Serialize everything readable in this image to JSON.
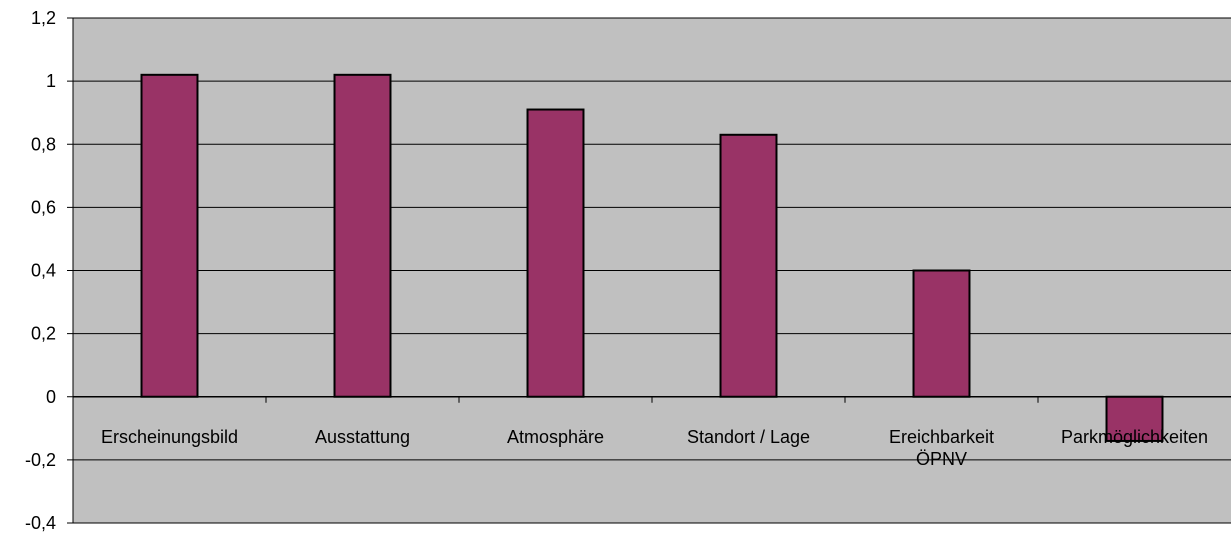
{
  "chart_data": {
    "type": "bar",
    "title": "",
    "xlabel": "",
    "ylabel": "",
    "categories": [
      [
        "Erscheinungsbild"
      ],
      [
        "Ausstattung"
      ],
      [
        "Atmosphäre"
      ],
      [
        "Standort / Lage"
      ],
      [
        "Ereichbarkeit",
        "ÖPNV"
      ],
      [
        "Parkmöglichkeiten"
      ]
    ],
    "values": [
      1.02,
      1.02,
      0.91,
      0.83,
      0.4,
      -0.14
    ],
    "ylim": [
      -0.4,
      1.2
    ],
    "yticks": [
      1.2,
      1,
      0.8,
      0.6,
      0.4,
      0.2,
      0,
      -0.2,
      -0.4
    ],
    "ytick_labels": [
      "1,2",
      "1",
      "0,8",
      "0,6",
      "0,4",
      "0,2",
      "0",
      "-0,2",
      "-0,4"
    ],
    "grid": true,
    "legend": "none",
    "colors": {
      "bar": "#993366",
      "bar_stroke": "#000000",
      "plot_background": "#c0c0c0",
      "gridline": "#000000"
    }
  }
}
